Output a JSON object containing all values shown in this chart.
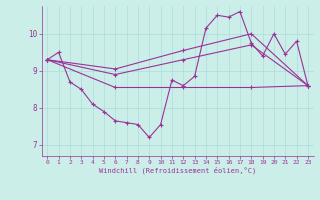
{
  "bg_color": "#cceee8",
  "line_color": "#993399",
  "xlabel": "Windchill (Refroidissement éolien,°C)",
  "xlim": [
    -0.5,
    23.5
  ],
  "ylim": [
    6.7,
    10.75
  ],
  "yticks": [
    7,
    8,
    9,
    10
  ],
  "xticks": [
    0,
    1,
    2,
    3,
    4,
    5,
    6,
    7,
    8,
    9,
    10,
    11,
    12,
    13,
    14,
    15,
    16,
    17,
    18,
    19,
    20,
    21,
    22,
    23
  ],
  "series": [
    {
      "x": [
        0,
        1,
        2,
        3,
        4,
        5,
        6,
        7,
        8,
        9,
        10,
        11,
        12,
        13,
        14,
        15,
        16,
        17,
        18,
        19,
        20,
        21,
        22,
        23
      ],
      "y": [
        9.3,
        9.5,
        8.7,
        8.5,
        8.1,
        7.9,
        7.65,
        7.6,
        7.55,
        7.2,
        7.55,
        8.75,
        8.6,
        8.85,
        10.15,
        10.5,
        10.45,
        10.6,
        9.75,
        9.4,
        10.0,
        9.45,
        9.8,
        8.6
      ]
    },
    {
      "x": [
        0,
        6,
        12,
        18,
        23
      ],
      "y": [
        9.3,
        9.05,
        9.55,
        10.0,
        8.6
      ]
    },
    {
      "x": [
        0,
        6,
        12,
        18,
        23
      ],
      "y": [
        9.3,
        8.9,
        9.3,
        9.7,
        8.6
      ]
    },
    {
      "x": [
        0,
        6,
        12,
        18,
        23
      ],
      "y": [
        9.3,
        8.55,
        8.55,
        8.55,
        8.6
      ]
    }
  ]
}
